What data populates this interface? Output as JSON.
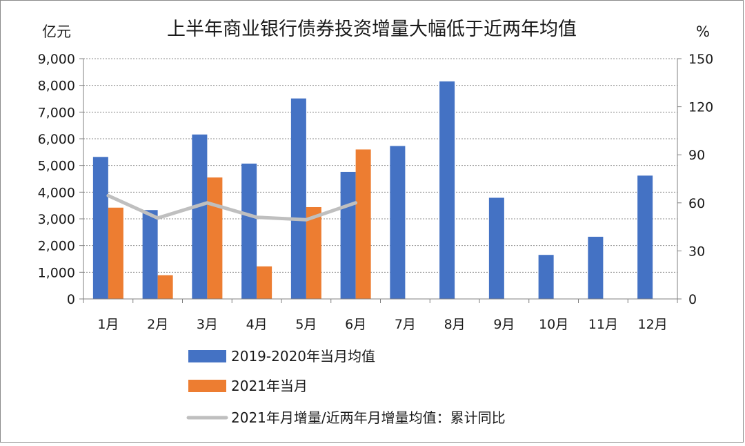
{
  "chart_data": {
    "type": "bar",
    "title": "上半年商业银行债券投资增量大幅低于近两年均值",
    "ylabel_left": "亿元",
    "ylabel_right": "%",
    "ylim_left": [
      0,
      9000
    ],
    "yticks_left": [
      "0",
      "1,000",
      "2,000",
      "3,000",
      "4,000",
      "5,000",
      "6,000",
      "7,000",
      "8,000",
      "9,000"
    ],
    "ylim_right": [
      0,
      150
    ],
    "yticks_right": [
      "0",
      "30",
      "60",
      "90",
      "120",
      "150"
    ],
    "categories": [
      "1月",
      "2月",
      "3月",
      "4月",
      "5月",
      "6月",
      "7月",
      "8月",
      "9月",
      "10月",
      "11月",
      "12月"
    ],
    "series": [
      {
        "name": "2019-2020年当月均值",
        "kind": "bar",
        "axis": "left",
        "color": "#4472C4",
        "values": [
          5320,
          3330,
          6160,
          5070,
          7510,
          4760,
          5730,
          8150,
          3790,
          1650,
          2330,
          4620
        ]
      },
      {
        "name": "2021年当月",
        "kind": "bar",
        "axis": "left",
        "color": "#ED7D31",
        "values": [
          3420,
          890,
          4550,
          1220,
          3440,
          5600,
          null,
          null,
          null,
          null,
          null,
          null
        ]
      },
      {
        "name": "2021年月增量/近两年月增量均值：累计同比",
        "kind": "line",
        "axis": "right",
        "color": "#BFBFBF",
        "values": [
          64.5,
          50.5,
          60,
          51,
          49.5,
          60,
          null,
          null,
          null,
          null,
          null,
          null
        ]
      }
    ],
    "grid": true,
    "legend_position": "bottom"
  }
}
